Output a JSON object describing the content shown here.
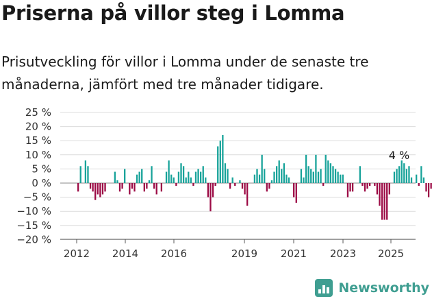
{
  "header": {
    "title": "Priserna på villor steg i Lomma",
    "subtitle": "Prisutveckling för villor i Lomma under de senaste tre månaderna, jämfört med tre månader tidigare."
  },
  "brand": {
    "name": "Newsworthy",
    "icon": "newsworthy-logo-icon"
  },
  "colors": {
    "positive": "#18a39a",
    "negative": "#9c0b45",
    "axis": "#333333",
    "grid": "#dcdcdc"
  },
  "chart_data": {
    "type": "bar",
    "x_start": "2012-01",
    "x_tick_labels": [
      "2012",
      "2014",
      "2016",
      "2019",
      "2021",
      "2023",
      "2025"
    ],
    "y_tick_labels": [
      "25 %",
      "20 %",
      "15 %",
      "10 %",
      "5 %",
      "0 %",
      "−5 %",
      "−10 %",
      "−15 %",
      "−20 %"
    ],
    "ylim": [
      -20,
      25
    ],
    "grid": true,
    "annotation": "4 %",
    "values": [
      -3,
      6,
      0,
      8,
      6,
      -2,
      -3,
      -6,
      -4,
      -5,
      -4,
      -3,
      0,
      0,
      0,
      4,
      1,
      -3,
      -2,
      5,
      0,
      -4,
      -2,
      -3,
      3,
      4,
      5,
      -3,
      -2,
      1,
      6,
      -2,
      -4,
      0,
      -3,
      0,
      4,
      8,
      3,
      2,
      -1,
      4,
      7,
      6,
      2,
      4,
      2,
      -1,
      4,
      5,
      4,
      6,
      2,
      -5,
      -10,
      -5,
      -1,
      13,
      15,
      17,
      7,
      5,
      -2,
      2,
      -1,
      0,
      1,
      -2,
      -4,
      -8,
      0,
      0,
      3,
      5,
      3,
      10,
      5,
      -3,
      -2,
      1,
      4,
      6,
      8,
      5,
      7,
      3,
      2,
      0,
      -5,
      -7,
      0,
      5,
      2,
      10,
      6,
      5,
      4,
      10,
      4,
      5,
      -1,
      10,
      8,
      7,
      6,
      5,
      4,
      3,
      3,
      0,
      -5,
      -3,
      -3,
      0,
      0,
      6,
      -1,
      -3,
      -2,
      -1,
      0,
      -1,
      -4,
      -8,
      -13,
      -13,
      -13,
      -4,
      0,
      4,
      5,
      6,
      8,
      7,
      5,
      6,
      2,
      0,
      3,
      -1,
      6,
      2,
      -3,
      -5,
      -2,
      3,
      0,
      -3,
      -2,
      0,
      1,
      4
    ]
  }
}
